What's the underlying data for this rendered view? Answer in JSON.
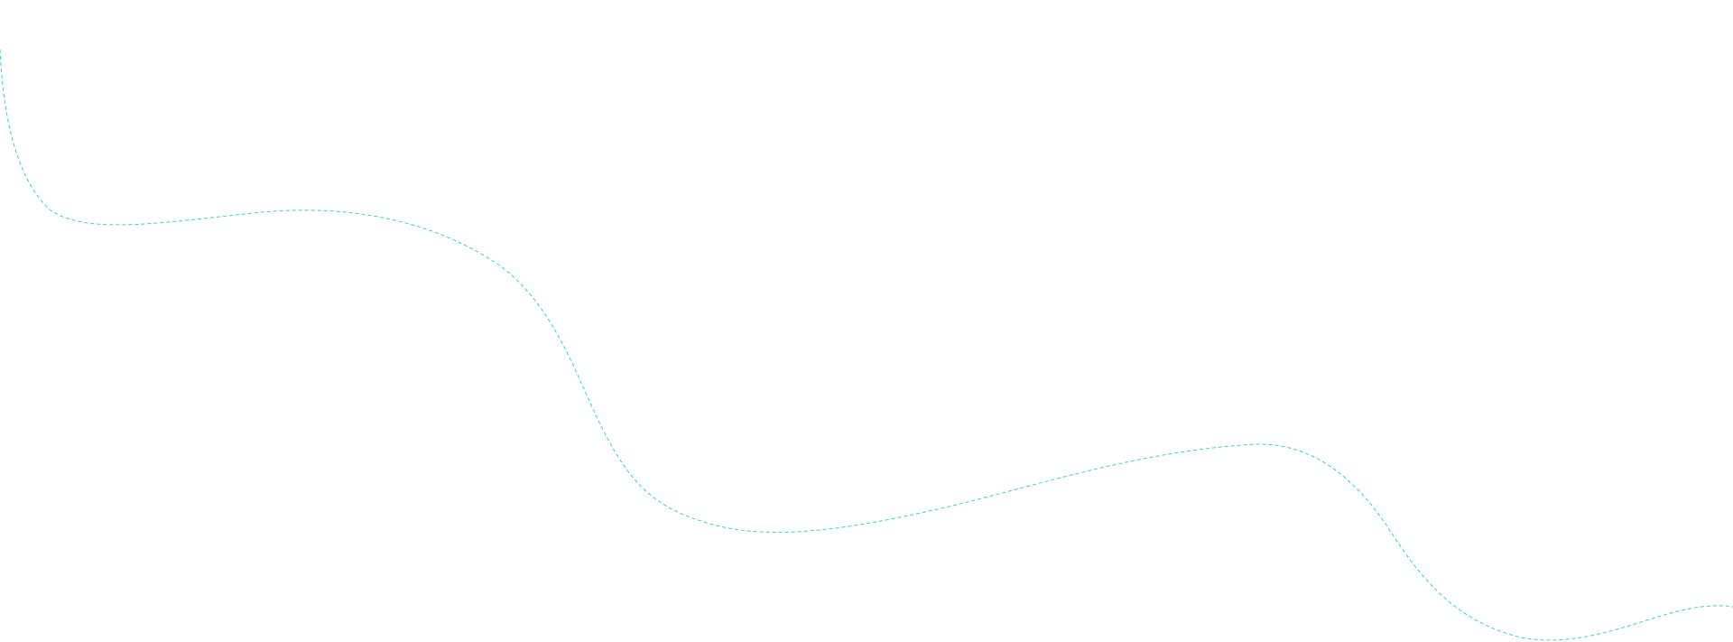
{
  "colors": {
    "background": "#ffffff",
    "wave_stroke": "#3dd6ad"
  }
}
